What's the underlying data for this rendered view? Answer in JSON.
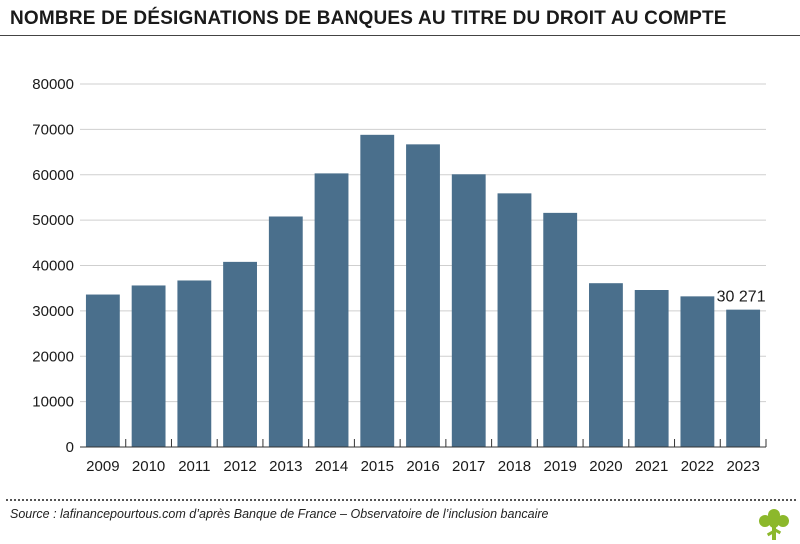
{
  "title": "NOMBRE DE DÉSIGNATIONS DE BANQUES AU TITRE DU DROIT AU COMPTE",
  "source": "Source : lafinancepourtous.com d’après Banque de France – Observatoire de l’inclusion bancaire",
  "colors": {
    "bar": "#4a6f8c",
    "grid": "#cfcfcf",
    "logo": "#8cb82b"
  },
  "logo_icon": "tree-icon",
  "chart_data": {
    "type": "bar",
    "title": "NOMBRE DE DÉSIGNATIONS DE BANQUES AU TITRE DU DROIT AU COMPTE",
    "xlabel": "",
    "ylabel": "",
    "categories": [
      "2009",
      "2010",
      "2011",
      "2012",
      "2013",
      "2014",
      "2015",
      "2016",
      "2017",
      "2018",
      "2019",
      "2020",
      "2021",
      "2022",
      "2023"
    ],
    "values": [
      33600,
      35600,
      36700,
      40800,
      50800,
      60300,
      68800,
      66700,
      60100,
      55900,
      51600,
      36100,
      34600,
      33200,
      30271
    ],
    "ylim": [
      0,
      80000
    ],
    "yticks": [
      "0",
      "10000",
      "20000",
      "30000",
      "40000",
      "50000",
      "60000",
      "70000",
      "80000"
    ],
    "grid": true,
    "annotations": [
      {
        "category": "2023",
        "text": "30 271"
      }
    ]
  }
}
